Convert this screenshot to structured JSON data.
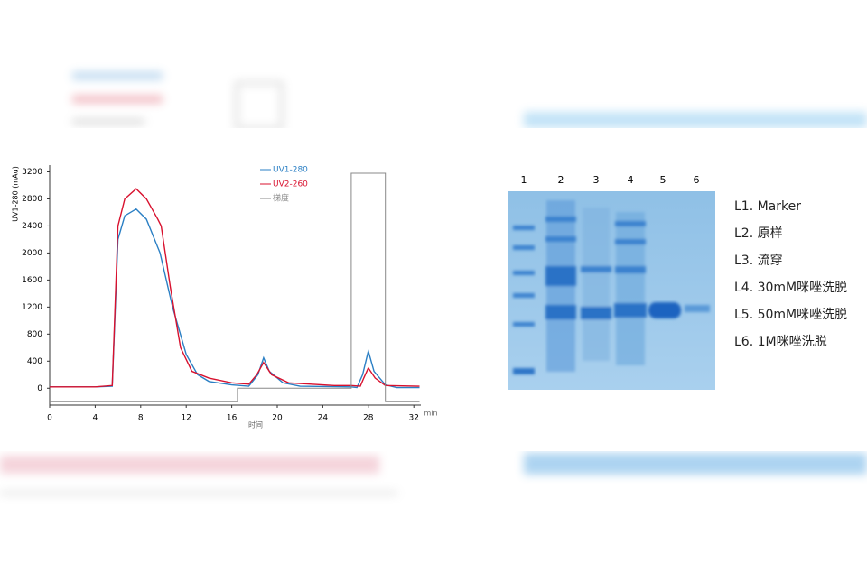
{
  "chart_data": {
    "type": "line",
    "y_label": "UV1-280 (mAu)",
    "x_label": "时间",
    "x_unit": "min",
    "xlim": [
      0,
      32.5
    ],
    "ylim": [
      -250,
      3300
    ],
    "xticks": [
      0,
      4,
      8,
      12,
      16,
      20,
      24,
      28,
      32
    ],
    "yticks": [
      0,
      400,
      800,
      1200,
      1600,
      2000,
      2400,
      2800,
      3200
    ],
    "series": [
      {
        "name": "UV1-280",
        "color": "#2a7fc4",
        "x": [
          0,
          4,
          5.5,
          6,
          6.6,
          7.6,
          8.5,
          9.7,
          10.8,
          12,
          13,
          14,
          16,
          17.5,
          18.3,
          18.8,
          19.3,
          20.5,
          22,
          26.5,
          27,
          27.5,
          28,
          28.5,
          29.5,
          30.5,
          32.5
        ],
        "values": [
          20,
          20,
          30,
          2200,
          2550,
          2650,
          2500,
          2000,
          1200,
          500,
          200,
          100,
          50,
          30,
          200,
          450,
          250,
          80,
          30,
          20,
          10,
          200,
          550,
          250,
          50,
          10,
          10
        ]
      },
      {
        "name": "UV2-260",
        "color": "#d8112e",
        "x": [
          0,
          4,
          5.5,
          6,
          6.6,
          7.6,
          8.5,
          9.5,
          9.8,
          10.6,
          11.5,
          12.5,
          14,
          16,
          17.5,
          18.2,
          18.8,
          19.5,
          21,
          25,
          26.5,
          27.3,
          27.6,
          28,
          28.6,
          29.5,
          32.5
        ],
        "values": [
          20,
          20,
          40,
          2400,
          2800,
          2950,
          2800,
          2500,
          2400,
          1500,
          600,
          250,
          150,
          80,
          60,
          200,
          380,
          200,
          80,
          40,
          40,
          30,
          150,
          300,
          150,
          40,
          30
        ]
      },
      {
        "name": "梯度",
        "color": "#888888",
        "x": [
          0,
          16.5,
          16.5,
          26.5,
          26.5,
          29.5,
          29.5,
          32.5
        ],
        "values": [
          -200,
          -200,
          0,
          0,
          3180,
          3180,
          -200,
          -200
        ]
      }
    ]
  },
  "gel": {
    "lanes": [
      "1",
      "2",
      "3",
      "4",
      "5",
      "6"
    ],
    "legend": [
      "L1. Marker",
      "L2. 原样",
      "L3. 流穿",
      "L4. 30mM咪唑洗脱",
      "L5. 50mM咪唑洗脱",
      "L6. 1M咪唑洗脱"
    ]
  }
}
